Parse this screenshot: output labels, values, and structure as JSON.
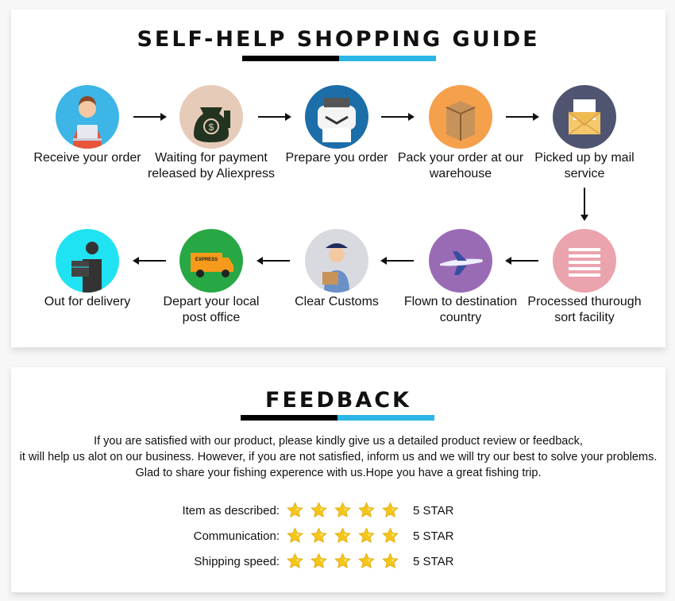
{
  "guide": {
    "title": "SELF-HELP SHOPPING GUIDE",
    "steps": [
      {
        "label": "Receive your order",
        "icon": "person-laptop-icon",
        "color": "#3db5e6"
      },
      {
        "label": "Waiting for payment\nreleased by Aliexpress",
        "icon": "money-bag-hand-icon",
        "color": "#e6cbb8"
      },
      {
        "label": "Prepare you order",
        "icon": "printer-icon",
        "color": "#1b6ea8"
      },
      {
        "label": "Pack your order at our\nwarehouse",
        "icon": "box-icon",
        "color": "#f5a04b"
      },
      {
        "label": "Picked up by mail\nservice",
        "icon": "envelope-icon",
        "color": "#4f5570"
      },
      {
        "label": "Processed thurough\nsort facility",
        "icon": "lines-icon",
        "color": "#eba3ad"
      },
      {
        "label": "Flown to destination\ncountry",
        "icon": "airplane-icon",
        "color": "#9a6bb5"
      },
      {
        "label": "Clear Customs",
        "icon": "customs-officer-icon",
        "color": "#d9d9e0"
      },
      {
        "label": "Depart your local\npost office",
        "icon": "van-icon",
        "color": "#27a844"
      },
      {
        "label": "Out for delivery",
        "icon": "delivery-person-icon",
        "color": "#1fe3f2"
      }
    ]
  },
  "feedback": {
    "title": "FEEDBACK",
    "lines": [
      "If you are satisfied with our product, please kindly give us a detailed product review or feedback,",
      "it will help us alot on our business. However, if you are not satisfied, inform us and we will try our best to solve your problems.",
      "Glad to share your fishing experence with us.Hope you have a great fishing trip."
    ],
    "ratings": [
      {
        "label": "Item as described:",
        "stars": 5,
        "value": "5 STAR"
      },
      {
        "label": "Communication:",
        "stars": 5,
        "value": "5 STAR"
      },
      {
        "label": "Shipping speed:",
        "stars": 5,
        "value": "5 STAR"
      }
    ]
  },
  "colors": {
    "accent": "#2ab6e6",
    "star": "#f5c518"
  }
}
